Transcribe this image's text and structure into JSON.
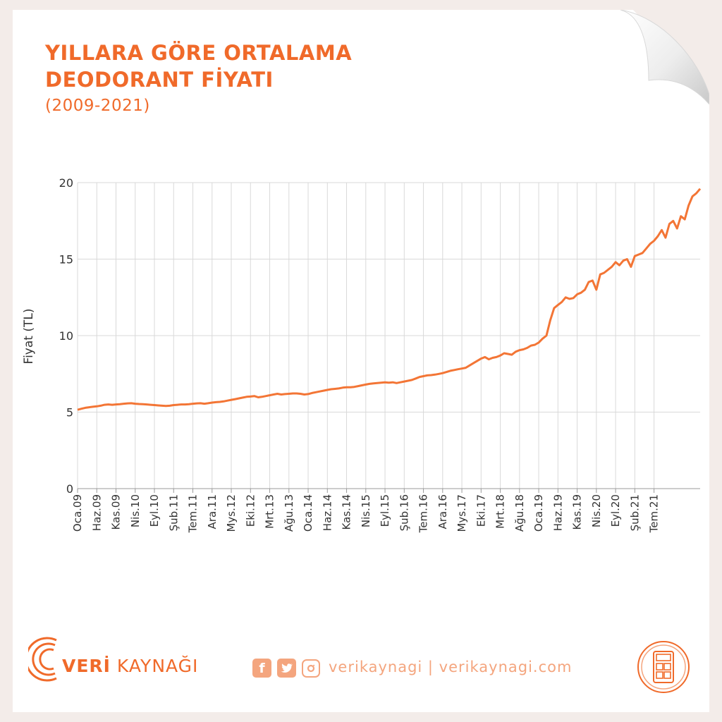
{
  "title_line1": "YILLARA GÖRE ORTALAMA",
  "title_line2": "DEODORANT FİYATI",
  "subtitle": "(2009-2021)",
  "colors": {
    "accent": "#f06a2a",
    "line": "#f37535",
    "grid": "#d9d9d9",
    "background": "#f3ece9"
  },
  "footer": {
    "brand_bold": "VERİ",
    "brand_rest": " KAYNAĞI",
    "handle": "verikaynagi | verikaynagi.com",
    "icons": [
      "facebook-icon",
      "twitter-icon",
      "instagram-icon",
      "calculator-icon"
    ]
  },
  "chart_data": {
    "type": "line",
    "ylabel": "Fiyat (TL)",
    "xlabel": "",
    "ylim": [
      0,
      20
    ],
    "yticks": [
      0,
      5,
      10,
      15,
      20
    ],
    "grid": true,
    "x_start": "2009-01",
    "x_end": "2021-10",
    "xticks": [
      "Oca.09",
      "Haz.09",
      "Kas.09",
      "Nis.10",
      "Eyl.10",
      "Şub.11",
      "Tem.11",
      "Ara.11",
      "Mys.12",
      "Eki.12",
      "Mrt.13",
      "Ağu.13",
      "Oca.14",
      "Haz.14",
      "Kas.14",
      "Nis.15",
      "Eyl.15",
      "Şub.16",
      "Tem.16",
      "Ara.16",
      "Mys.17",
      "Eki.17",
      "Mrt.18",
      "Ağu.18",
      "Oca.19",
      "Haz.19",
      "Kas.19",
      "Nis.20",
      "Eyl.20",
      "Şub.21",
      "Tem.21"
    ],
    "series": [
      {
        "values": [
          5.15,
          5.22,
          5.28,
          5.32,
          5.35,
          5.38,
          5.42,
          5.48,
          5.5,
          5.48,
          5.5,
          5.52,
          5.55,
          5.57,
          5.58,
          5.55,
          5.53,
          5.52,
          5.5,
          5.48,
          5.46,
          5.44,
          5.42,
          5.4,
          5.42,
          5.46,
          5.48,
          5.5,
          5.5,
          5.52,
          5.55,
          5.57,
          5.58,
          5.55,
          5.58,
          5.62,
          5.65,
          5.67,
          5.7,
          5.75,
          5.8,
          5.85,
          5.9,
          5.95,
          6.0,
          6.02,
          6.05,
          5.97,
          6.0,
          6.05,
          6.1,
          6.15,
          6.2,
          6.15,
          6.18,
          6.2,
          6.22,
          6.22,
          6.2,
          6.15,
          6.18,
          6.25,
          6.3,
          6.35,
          6.4,
          6.45,
          6.5,
          6.52,
          6.55,
          6.6,
          6.62,
          6.62,
          6.65,
          6.7,
          6.75,
          6.8,
          6.85,
          6.88,
          6.9,
          6.92,
          6.95,
          6.92,
          6.95,
          6.9,
          6.95,
          7.0,
          7.05,
          7.1,
          7.2,
          7.3,
          7.35,
          7.4,
          7.42,
          7.45,
          7.5,
          7.55,
          7.62,
          7.7,
          7.75,
          7.8,
          7.85,
          7.9,
          8.05,
          8.2,
          8.35,
          8.5,
          8.6,
          8.45,
          8.55,
          8.6,
          8.7,
          8.85,
          8.8,
          8.75,
          8.95,
          9.05,
          9.1,
          9.2,
          9.35,
          9.4,
          9.55,
          9.8,
          10.0,
          11.0,
          11.8,
          12.0,
          12.2,
          12.5,
          12.4,
          12.45,
          12.7,
          12.8,
          13.0,
          13.5,
          13.6,
          13.0,
          14.0,
          14.1,
          14.3,
          14.5,
          14.8,
          14.6,
          14.9,
          15.0,
          14.5,
          15.2,
          15.3,
          15.4,
          15.7,
          16.0,
          16.2,
          16.5,
          16.9,
          16.4,
          17.3,
          17.5,
          17.0,
          17.8,
          17.6,
          18.5,
          19.1,
          19.3,
          19.6
        ]
      }
    ]
  }
}
